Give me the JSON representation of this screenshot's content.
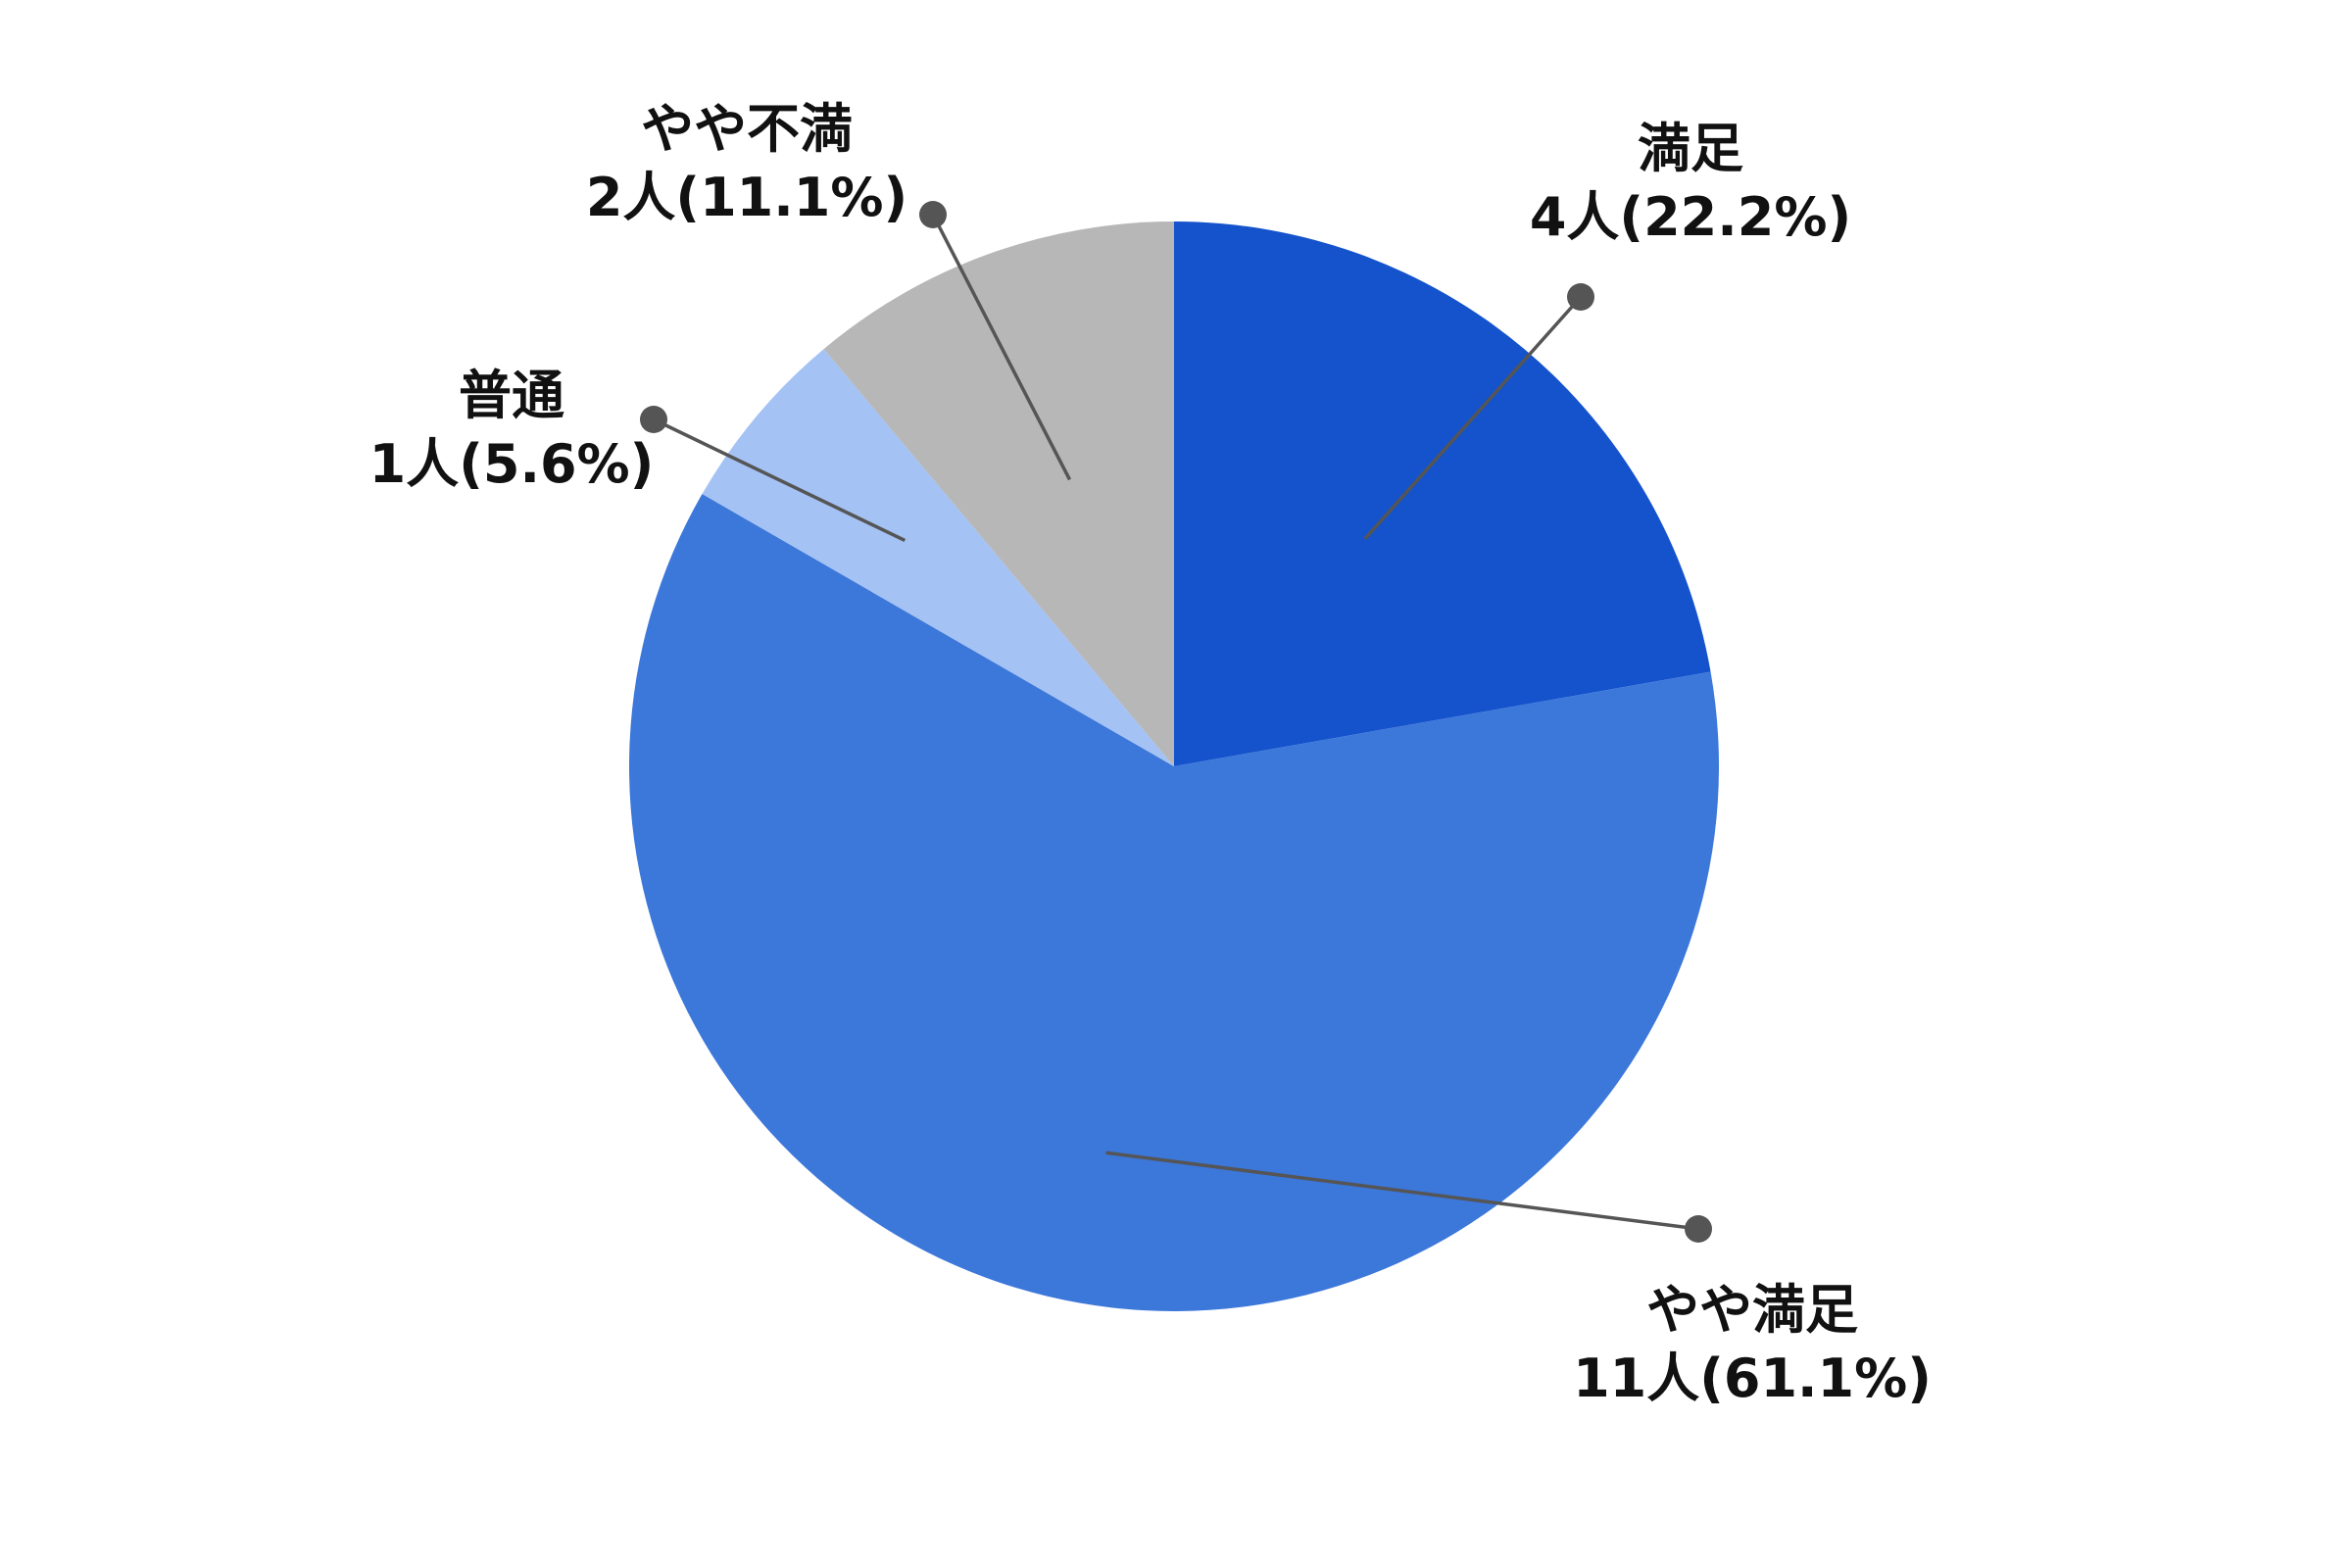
{
  "chart_data": {
    "type": "pie",
    "start_angle_deg": 0,
    "direction": "clockwise",
    "slices": [
      {
        "label": "満足",
        "count_text": "4人(22.2%)",
        "value": 4,
        "percent": 22.2,
        "color": "#1453cc"
      },
      {
        "label": "やや満足",
        "count_text": "11人(61.1%)",
        "value": 11,
        "percent": 61.1,
        "color": "#3c77da"
      },
      {
        "label": "普通",
        "count_text": "1人(5.6%)",
        "value": 1,
        "percent": 5.6,
        "color": "#a4c2f4"
      },
      {
        "label": "やや不満",
        "count_text": "2人(11.1%)",
        "value": 2,
        "percent": 11.1,
        "color": "#b7b7b7"
      }
    ],
    "leader_color": "#555555"
  }
}
